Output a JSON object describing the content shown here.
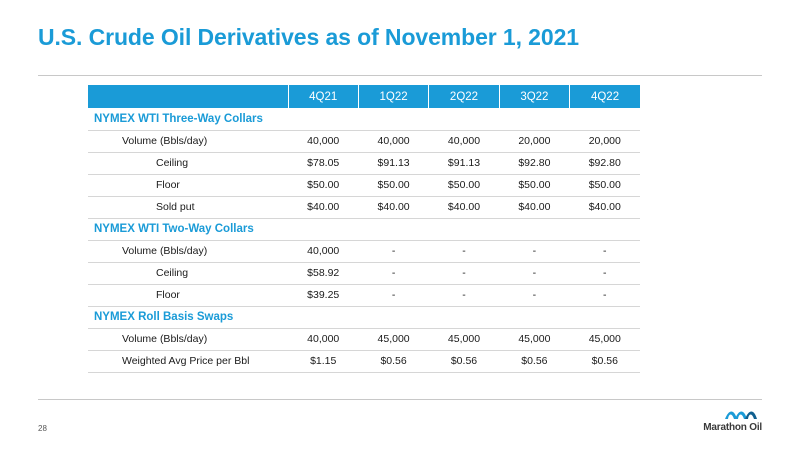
{
  "slide": {
    "title": "U.S. Crude Oil Derivatives as of November 1, 2021",
    "page_number": "28",
    "logo_text": "Marathon Oil"
  },
  "table": {
    "columns": [
      "4Q21",
      "1Q22",
      "2Q22",
      "3Q22",
      "4Q22"
    ],
    "sections": [
      {
        "name": "NYMEX WTI Three-Way Collars",
        "rows": [
          {
            "label": "Volume (Bbls/day)",
            "values": [
              "40,000",
              "40,000",
              "40,000",
              "20,000",
              "20,000"
            ]
          },
          {
            "label": "Ceiling",
            "values": [
              "$78.05",
              "$91.13",
              "$91.13",
              "$92.80",
              "$92.80"
            ]
          },
          {
            "label": "Floor",
            "values": [
              "$50.00",
              "$50.00",
              "$50.00",
              "$50.00",
              "$50.00"
            ]
          },
          {
            "label": "Sold put",
            "values": [
              "$40.00",
              "$40.00",
              "$40.00",
              "$40.00",
              "$40.00"
            ]
          }
        ]
      },
      {
        "name": "NYMEX WTI Two-Way Collars",
        "rows": [
          {
            "label": "Volume (Bbls/day)",
            "values": [
              "40,000",
              "-",
              "-",
              "-",
              "-"
            ]
          },
          {
            "label": "Ceiling",
            "values": [
              "$58.92",
              "-",
              "-",
              "-",
              "-"
            ]
          },
          {
            "label": "Floor",
            "values": [
              "$39.25",
              "-",
              "-",
              "-",
              "-"
            ]
          }
        ]
      },
      {
        "name": "NYMEX Roll Basis Swaps",
        "rows": [
          {
            "label": "Volume (Bbls/day)",
            "values": [
              "40,000",
              "45,000",
              "45,000",
              "45,000",
              "45,000"
            ]
          },
          {
            "label": "Weighted Avg Price per Bbl",
            "values": [
              "$1.15",
              "$0.56",
              "$0.56",
              "$0.56",
              "$0.56"
            ]
          }
        ]
      }
    ]
  },
  "colors": {
    "accent": "#1a9bd7",
    "rule": "#c8c8c8"
  }
}
